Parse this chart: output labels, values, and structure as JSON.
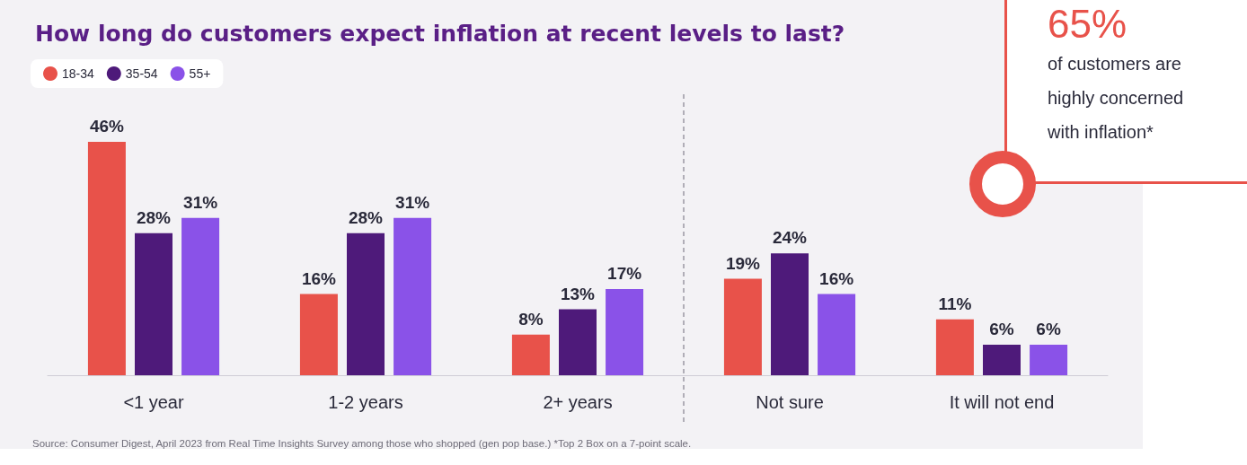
{
  "chart_data": {
    "type": "bar",
    "title": "How long do customers expect inflation at recent levels to last?",
    "categories": [
      "<1 year",
      "1-2 years",
      "2+ years",
      "Not sure",
      "It will not end"
    ],
    "series": [
      {
        "name": "18-34",
        "color": "#e8524a",
        "values": [
          46,
          16,
          8,
          19,
          11
        ],
        "value_labels": [
          "46%",
          "16%",
          "8%",
          "19%",
          "11%"
        ]
      },
      {
        "name": "35-54",
        "color": "#4e1a7a",
        "values": [
          28,
          28,
          13,
          24,
          6
        ],
        "value_labels": [
          "28%",
          "28%",
          "13%",
          "24%",
          "6%"
        ]
      },
      {
        "name": "55+",
        "color": "#8a52e8",
        "values": [
          31,
          31,
          17,
          16,
          6
        ],
        "value_labels": [
          "31%",
          "31%",
          "17%",
          "16%",
          "6%"
        ]
      }
    ],
    "legend": "top left",
    "annotations": [
      "65%",
      "of customers are highly concerned with inflation*",
      "Source: Consumer Digest, April 2023 from Real Time Insights Survey among those who shopped (gen pop base.) *Top 2 Box on a 7-point scale."
    ]
  }
}
